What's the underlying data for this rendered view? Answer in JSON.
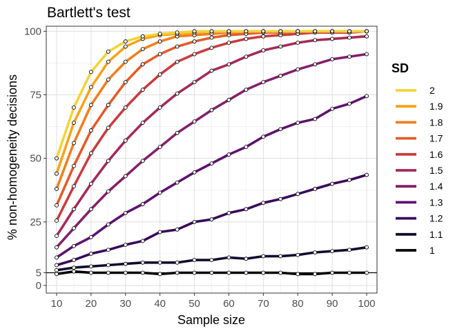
{
  "chart_data": {
    "type": "line",
    "title": "Bartlett's test",
    "xlabel": "Sample size",
    "ylabel": "% non-homogeneity decisions",
    "xlim": [
      7,
      103
    ],
    "ylim": [
      -3,
      102
    ],
    "x_ticks": [
      10,
      20,
      30,
      40,
      50,
      60,
      70,
      80,
      90,
      100
    ],
    "y_ticks": [
      0,
      5,
      25,
      50,
      75,
      100
    ],
    "reference_line": 5,
    "grid": true,
    "legend_title": "SD",
    "legend_position": "right",
    "x": [
      10,
      15,
      20,
      25,
      30,
      35,
      40,
      45,
      50,
      55,
      60,
      65,
      70,
      75,
      80,
      85,
      90,
      95,
      100
    ],
    "series": [
      {
        "name": "2",
        "color": "#f2d33a",
        "values": [
          50,
          70,
          84,
          92,
          96,
          98,
          99,
          99.5,
          100,
          100,
          100,
          100,
          100,
          100,
          100,
          100,
          100,
          100,
          100
        ]
      },
      {
        "name": "1.9",
        "color": "#f9a21a",
        "values": [
          44,
          64,
          78,
          88,
          94,
          97,
          98.5,
          99,
          99.5,
          100,
          100,
          100,
          100,
          100,
          100,
          100,
          100,
          100,
          100
        ]
      },
      {
        "name": "1.8",
        "color": "#f07f1e",
        "values": [
          38,
          56,
          71,
          81,
          88,
          93,
          96,
          98,
          98.5,
          99,
          99.5,
          100,
          100,
          100,
          100,
          100,
          100,
          100,
          100
        ]
      },
      {
        "name": "1.7",
        "color": "#e45a2a",
        "values": [
          31.5,
          47,
          61,
          71,
          80,
          87,
          91,
          94,
          96,
          97.5,
          98.5,
          99,
          99.5,
          99.5,
          100,
          100,
          100,
          100,
          100
        ]
      },
      {
        "name": "1.6",
        "color": "#c83c3f",
        "values": [
          25.5,
          39,
          52,
          62,
          70,
          77,
          83,
          88,
          91,
          93.5,
          95.5,
          97,
          98,
          98.5,
          99,
          99.5,
          99.5,
          99.5,
          100
        ]
      },
      {
        "name": "1.5",
        "color": "#a52a59",
        "values": [
          19.5,
          30,
          40,
          49,
          57,
          64,
          70,
          75.5,
          80,
          84.5,
          87,
          90,
          92.5,
          94,
          95.5,
          96.5,
          97,
          97.5,
          98
        ]
      },
      {
        "name": "1.4",
        "color": "#83206a",
        "values": [
          15,
          22.5,
          30,
          37,
          43,
          49,
          54.5,
          60,
          64.5,
          69,
          73,
          77,
          80,
          82.5,
          85,
          87,
          89,
          90,
          91
        ]
      },
      {
        "name": "1.3",
        "color": "#5d126e",
        "values": [
          11,
          15.5,
          19,
          24,
          28.5,
          32,
          36.5,
          40.5,
          44.5,
          48,
          51.5,
          54.5,
          58.5,
          61.5,
          64,
          65.5,
          69.5,
          71.5,
          74.5
        ]
      },
      {
        "name": "1.2",
        "color": "#37095c",
        "values": [
          8,
          10,
          12.5,
          14,
          16,
          17.5,
          21,
          22,
          25,
          26,
          28.5,
          30,
          32.5,
          34,
          36,
          38,
          40,
          41.5,
          43.5
        ]
      },
      {
        "name": "1.1",
        "color": "#120a2e",
        "values": [
          6,
          7,
          7.5,
          8,
          8.5,
          9,
          9,
          9,
          10,
          10,
          11,
          10.5,
          11.5,
          11.5,
          12,
          13,
          13.5,
          14,
          15
        ]
      },
      {
        "name": "1",
        "color": "#000004",
        "values": [
          4.5,
          5.5,
          5,
          5,
          5,
          5,
          4.5,
          5,
          5,
          5,
          5,
          5,
          5,
          5,
          4.5,
          4.5,
          5,
          5,
          5
        ]
      }
    ]
  }
}
